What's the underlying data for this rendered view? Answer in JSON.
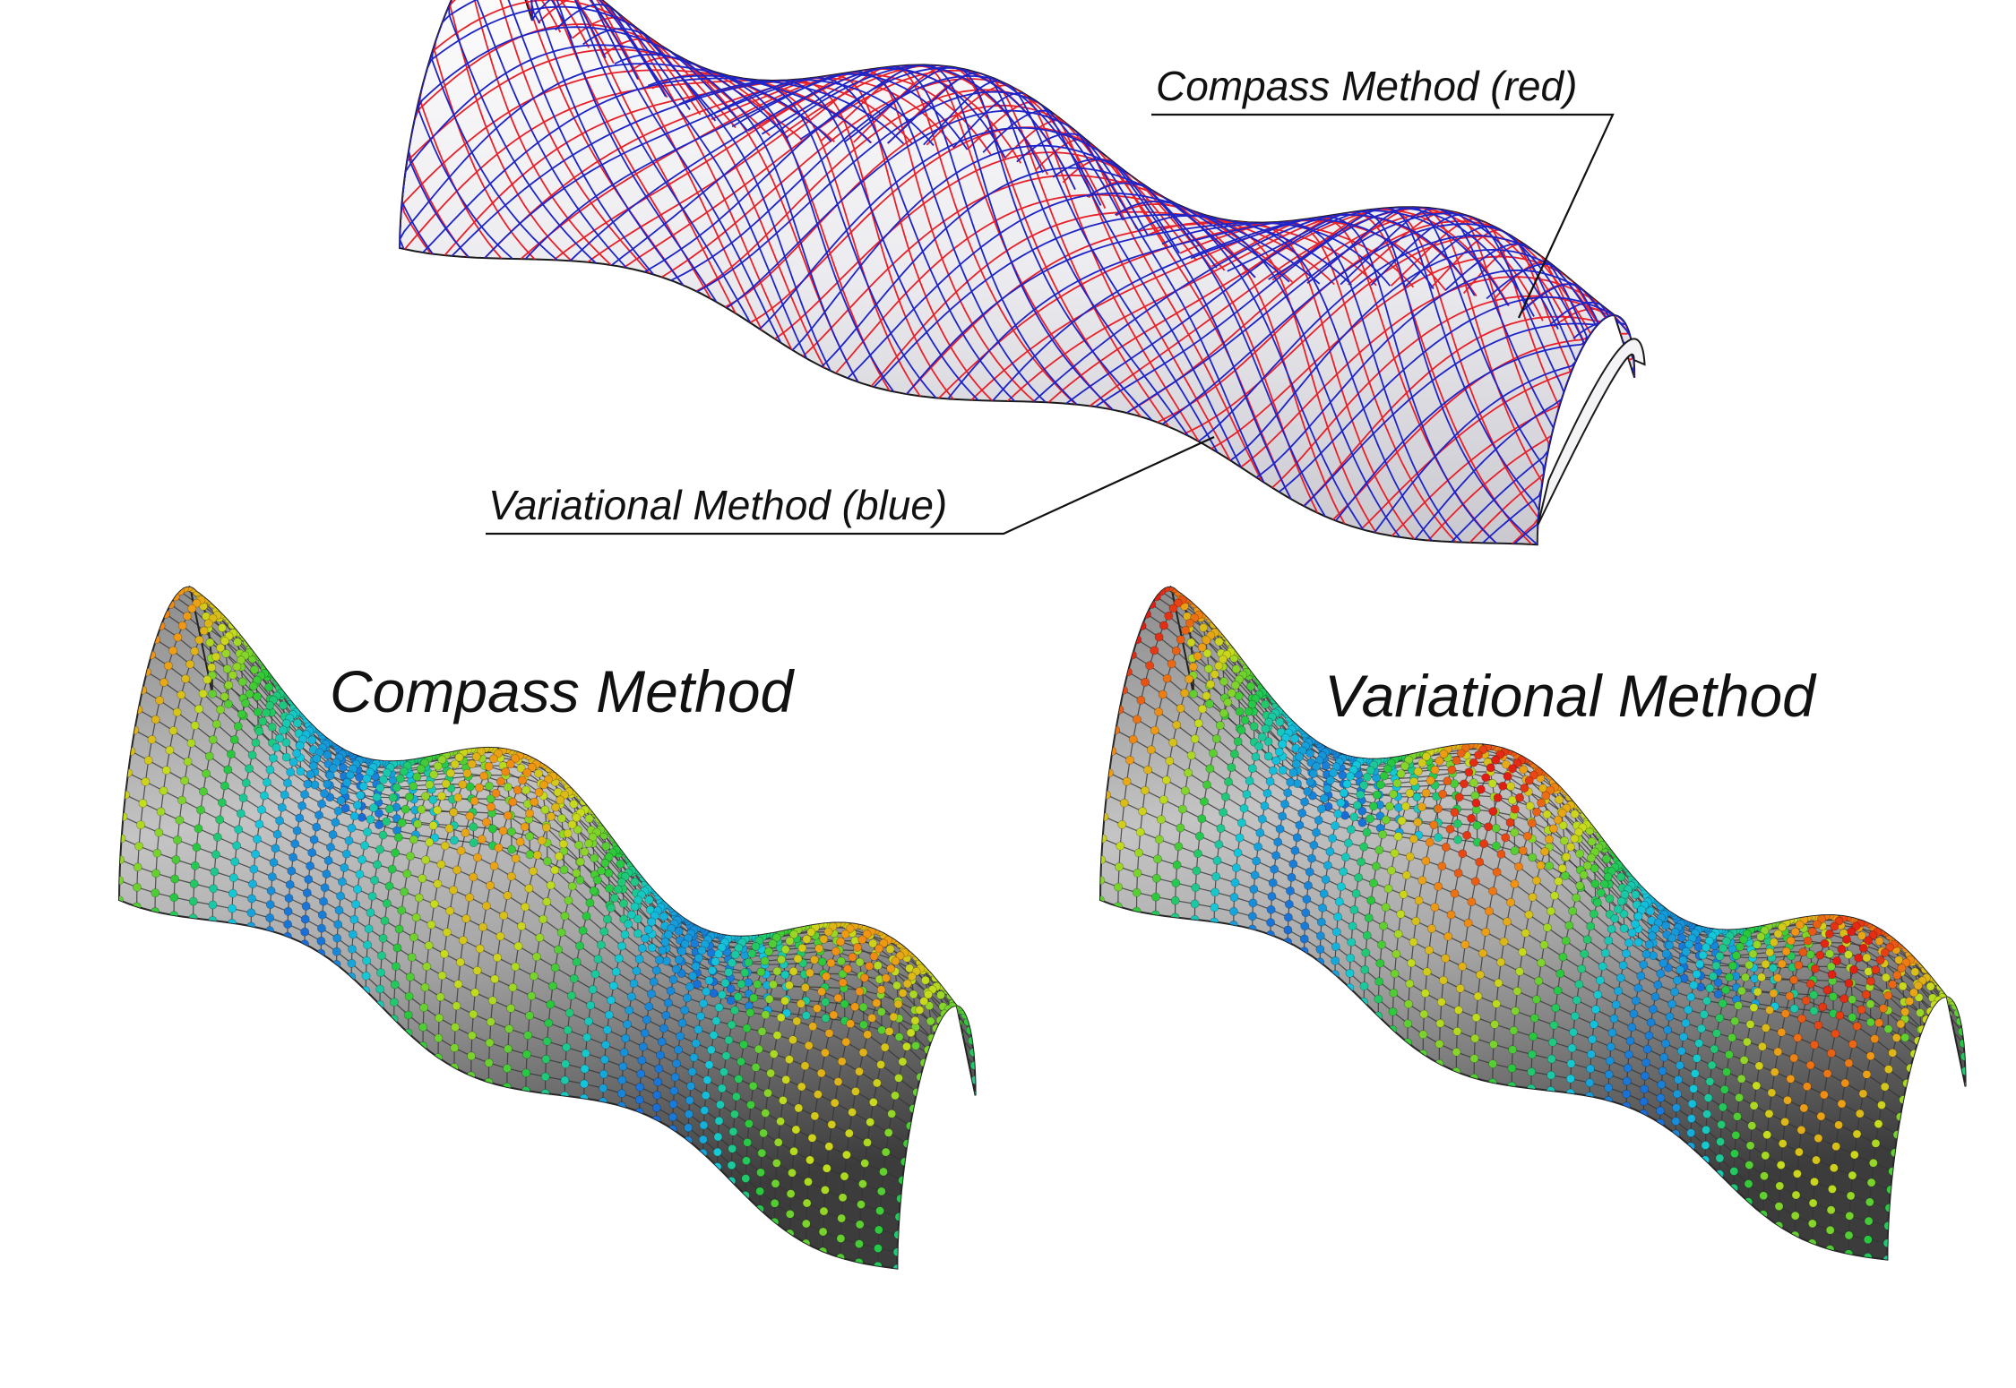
{
  "top_panel": {
    "label_red": "Compass Method (red)",
    "label_blue": "Variational Method (blue)",
    "colors": {
      "compass": "#e8202a",
      "variational": "#1d24c8"
    }
  },
  "bottom_left": {
    "title": "Compass Method"
  },
  "bottom_right": {
    "title": "Variational Method"
  }
}
